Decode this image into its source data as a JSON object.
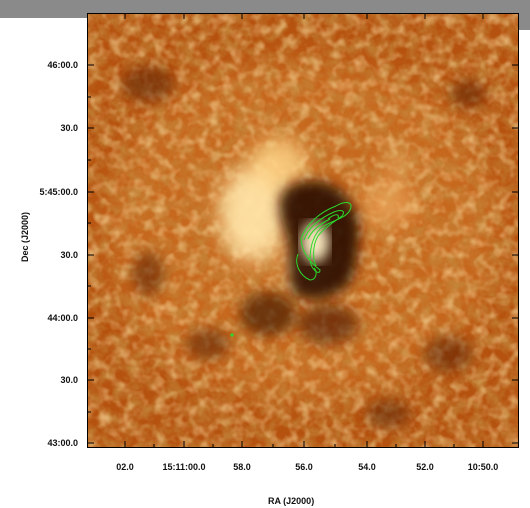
{
  "axes": {
    "x_title": "RA (J2000)",
    "y_title": "Dec (J2000)",
    "x_ticks": [
      "02.0",
      "15:11:00.0",
      "58.0",
      "56.0",
      "54.0",
      "52.0",
      "10:50.0"
    ],
    "y_ticks": [
      "46:00.0",
      "30.0",
      "5:45:00.0",
      "30.0",
      "44:00.0",
      "30.0",
      "43:00.0"
    ]
  },
  "colors": {
    "colormap": "heat-orange",
    "contours": "#2bd92b",
    "frame_band": "#8a8a8a"
  }
}
